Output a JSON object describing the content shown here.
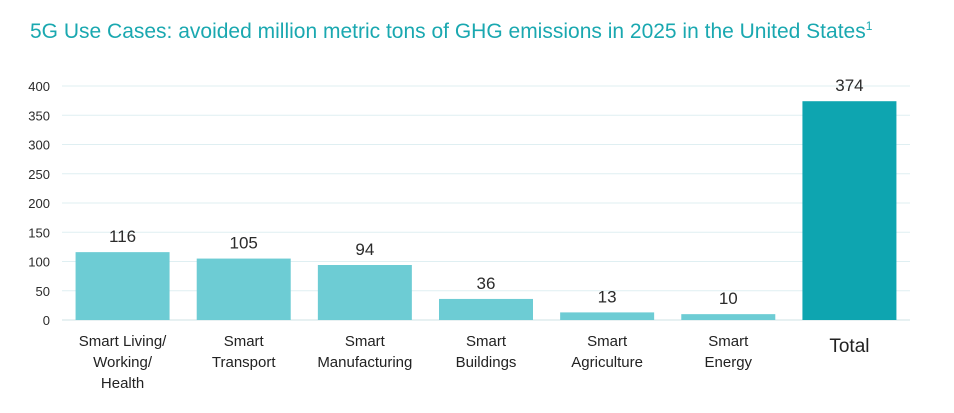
{
  "chart_data": {
    "type": "bar",
    "title": "5G Use Cases: avoided million metric tons of GHG emissions in 2025 in the United States",
    "title_superscript": "1",
    "categories": [
      [
        "Smart Living/",
        "Working/",
        "Health"
      ],
      [
        "Smart",
        "Transport"
      ],
      [
        "Smart",
        "Manufacturing"
      ],
      [
        "Smart",
        "Buildings"
      ],
      [
        "Smart",
        "Agriculture"
      ],
      [
        "Smart",
        "Energy"
      ],
      [
        "Total"
      ]
    ],
    "values": [
      116,
      105,
      94,
      36,
      13,
      10,
      374
    ],
    "value_labels": [
      "116",
      "105",
      "94",
      "36",
      "13",
      "10",
      "374"
    ],
    "highlight_index": 6,
    "ylim": [
      0,
      400
    ],
    "yticks": [
      0,
      50,
      100,
      150,
      200,
      250,
      300,
      350,
      400
    ],
    "ytick_labels": [
      "0",
      "50",
      "100",
      "150",
      "200",
      "250",
      "300",
      "350",
      "400"
    ],
    "grid": true,
    "legend": "none",
    "colors": {
      "bar": "#6dccd4",
      "highlight_bar": "#0ea5b0",
      "title": "#1aa8b0"
    }
  }
}
